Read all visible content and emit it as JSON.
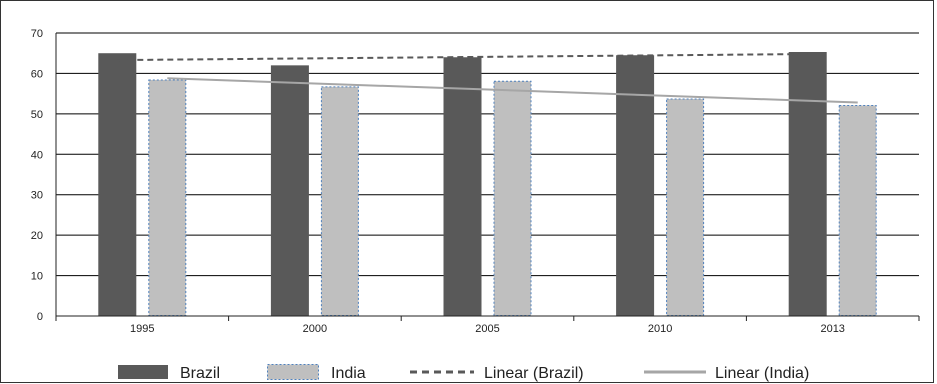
{
  "chart_data": {
    "type": "bar",
    "categories": [
      "1995",
      "2000",
      "2005",
      "2010",
      "2013"
    ],
    "series": [
      {
        "name": "Brazil",
        "values": [
          65,
          62,
          64,
          64.5,
          65.3
        ],
        "color": "#595959"
      },
      {
        "name": "India",
        "values": [
          58.5,
          56.8,
          58.2,
          53.8,
          52.2
        ],
        "color": "#bfbfbf",
        "border_color": "#4f81bd",
        "border_style": "dashed"
      }
    ],
    "trendlines": [
      {
        "name": "Linear (Brazil)",
        "series": "Brazil",
        "start": 63.3,
        "end": 64.8,
        "color": "#595959",
        "style": "dashed"
      },
      {
        "name": "Linear (India)",
        "series": "India",
        "start": 58.8,
        "end": 52.8,
        "color": "#a6a6a6",
        "style": "solid"
      }
    ],
    "y_ticks": [
      "0",
      "10",
      "20",
      "30",
      "40",
      "50",
      "60",
      "70"
    ],
    "ylim": [
      0,
      70
    ],
    "title": "",
    "xlabel": "",
    "ylabel": "",
    "grid": "horizontal",
    "legend_position": "bottom"
  }
}
